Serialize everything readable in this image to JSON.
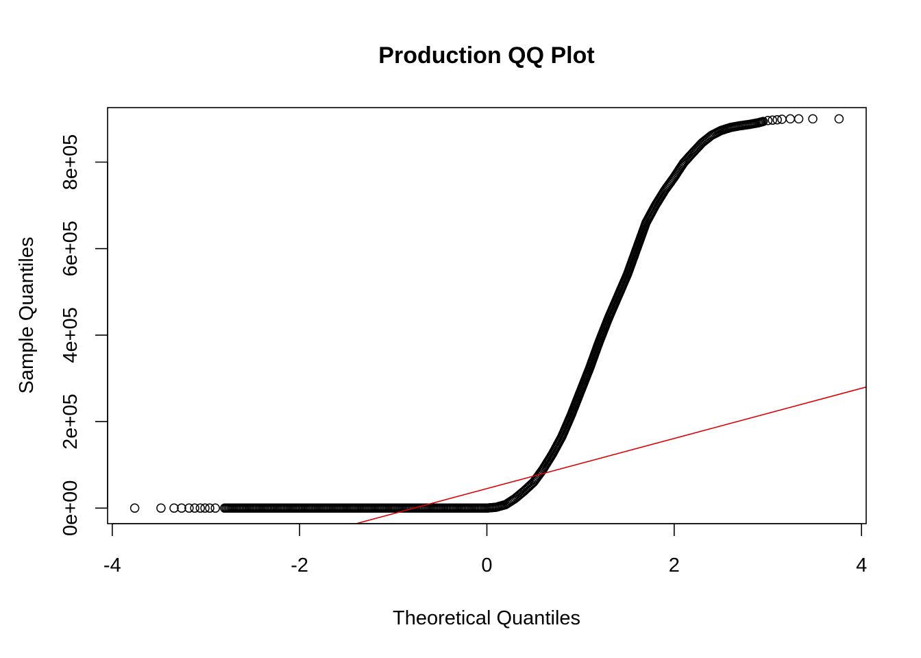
{
  "chart_data": {
    "type": "scatter",
    "title": "Production QQ Plot",
    "xlabel": "Theoretical Quantiles",
    "ylabel": "Sample Quantiles",
    "xlim": [
      -4.05,
      4.05
    ],
    "ylim": [
      -36000,
      926000
    ],
    "x_ticks": [
      -4,
      -2,
      0,
      2,
      4
    ],
    "x_tick_labels": [
      "-4",
      "-2",
      "0",
      "2",
      "4"
    ],
    "y_ticks": [
      0,
      200000,
      400000,
      600000,
      800000
    ],
    "y_tick_labels": [
      "0e+00",
      "2e+05",
      "4e+05",
      "6e+05",
      "8e+05"
    ],
    "grid": false,
    "legend": "none",
    "colors": {
      "points": "#000000",
      "reference_line": "#dd0000",
      "background": "#ffffff"
    },
    "series": [
      {
        "kind": "points",
        "marker": "open-circle",
        "x": [
          -3.76,
          -3.48,
          -3.34,
          -3.26,
          -3.18,
          -3.12,
          -3.06,
          -3.01,
          -2.96,
          -2.9,
          -2.8,
          -2.6,
          -2.4,
          -2.2,
          -2.0,
          -1.8,
          -1.6,
          -1.4,
          -1.2,
          -1.0,
          -0.8,
          -0.6,
          -0.4,
          -0.2,
          0.0,
          0.1,
          0.2,
          0.3,
          0.4,
          0.5,
          0.6,
          0.7,
          0.8,
          0.9,
          1.0,
          1.1,
          1.2,
          1.3,
          1.4,
          1.5,
          1.6,
          1.7,
          1.8,
          1.9,
          2.0,
          2.1,
          2.2,
          2.3,
          2.4,
          2.5,
          2.6,
          2.7,
          2.8,
          2.9,
          2.95,
          3.0,
          3.05,
          3.1,
          3.15,
          3.24,
          3.33,
          3.48,
          3.76
        ],
        "y": [
          0,
          0,
          0,
          0,
          0,
          0,
          0,
          0,
          0,
          0,
          0,
          0,
          0,
          0,
          0,
          0,
          0,
          0,
          0,
          0,
          0,
          0,
          0,
          0,
          0,
          2000,
          8000,
          22000,
          40000,
          60000,
          90000,
          125000,
          165000,
          215000,
          270000,
          325000,
          385000,
          440000,
          490000,
          540000,
          600000,
          660000,
          700000,
          735000,
          765000,
          798000,
          822000,
          845000,
          862000,
          873000,
          880000,
          884000,
          887000,
          891000,
          894000,
          896000,
          897000,
          898000,
          899000,
          900000,
          900000,
          900000,
          900000
        ]
      },
      {
        "kind": "reference-line",
        "intercept": 45000,
        "slope": 58000
      }
    ]
  }
}
